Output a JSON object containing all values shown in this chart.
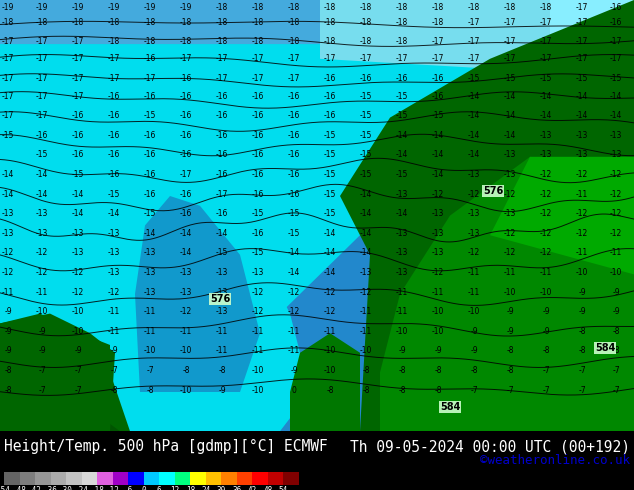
{
  "title_left": "Height/Temp. 500 hPa [gdmp][°C] ECMWF",
  "title_right": "Th 09-05-2024 00:00 UTC (00+192)",
  "credit": "©weatheronline.co.uk",
  "colorbar_values": [
    -54,
    -48,
    -42,
    -36,
    -30,
    -24,
    -18,
    -12,
    -6,
    0,
    6,
    12,
    18,
    24,
    30,
    36,
    42,
    48,
    54
  ],
  "colorbar_colors": [
    "#646464",
    "#7d7d7d",
    "#969696",
    "#ababab",
    "#c3c3c3",
    "#d8d8d8",
    "#e060e0",
    "#a000c8",
    "#0000ff",
    "#00c8ff",
    "#00ffff",
    "#00ff80",
    "#ffff00",
    "#ffc000",
    "#ff8000",
    "#ff4000",
    "#ff0000",
    "#c00000",
    "#800000"
  ],
  "credit_color": "#0000cc",
  "title_fontsize": 10.5,
  "credit_fontsize": 9,
  "map_blue_top": "#3399dd",
  "map_cyan_light": "#55ddee",
  "map_cyan_main": "#00eeff",
  "map_green_dark": "#006600",
  "map_green_mid": "#008800",
  "map_green_light": "#00aa00",
  "map_green_lime": "#44cc44"
}
